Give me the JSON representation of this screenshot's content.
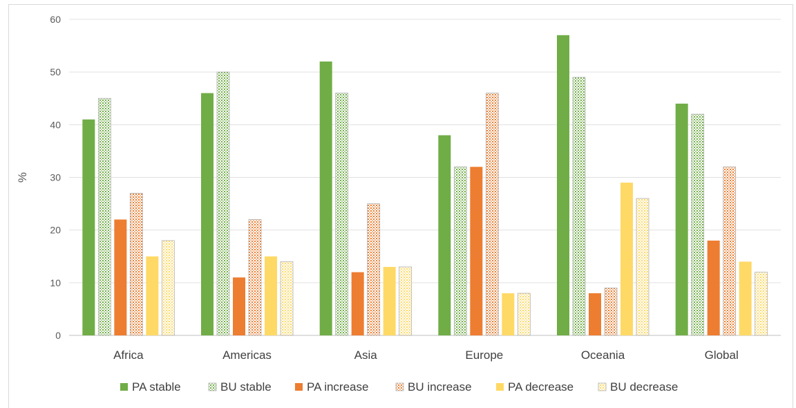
{
  "chart_data": {
    "type": "bar",
    "title": "",
    "xlabel": "",
    "ylabel": "%",
    "ylim": [
      0,
      60
    ],
    "yticks": [
      0,
      10,
      20,
      30,
      40,
      50,
      60
    ],
    "grid": true,
    "legend_position": "bottom",
    "categories": [
      "Africa",
      "Americas",
      "Asia",
      "Europe",
      "Oceania",
      "Global"
    ],
    "series": [
      {
        "name": "PA stable",
        "color": "#70ad47",
        "pattern": "solid",
        "values": [
          41,
          46,
          52,
          38,
          57,
          44
        ]
      },
      {
        "name": "BU stable",
        "color": "#70ad47",
        "pattern": "dotted",
        "values": [
          45,
          50,
          46,
          32,
          49,
          42
        ]
      },
      {
        "name": "PA increase",
        "color": "#ed7d31",
        "pattern": "solid",
        "values": [
          22,
          11,
          12,
          32,
          8,
          18
        ]
      },
      {
        "name": "BU increase",
        "color": "#ed7d31",
        "pattern": "dotted",
        "values": [
          27,
          22,
          25,
          46,
          9,
          32
        ]
      },
      {
        "name": "PA decrease",
        "color": "#ffd966",
        "pattern": "solid",
        "values": [
          15,
          15,
          13,
          8,
          29,
          14
        ]
      },
      {
        "name": "BU decrease",
        "color": "#ffd966",
        "pattern": "dotted",
        "values": [
          18,
          14,
          13,
          8,
          26,
          12
        ]
      }
    ]
  }
}
